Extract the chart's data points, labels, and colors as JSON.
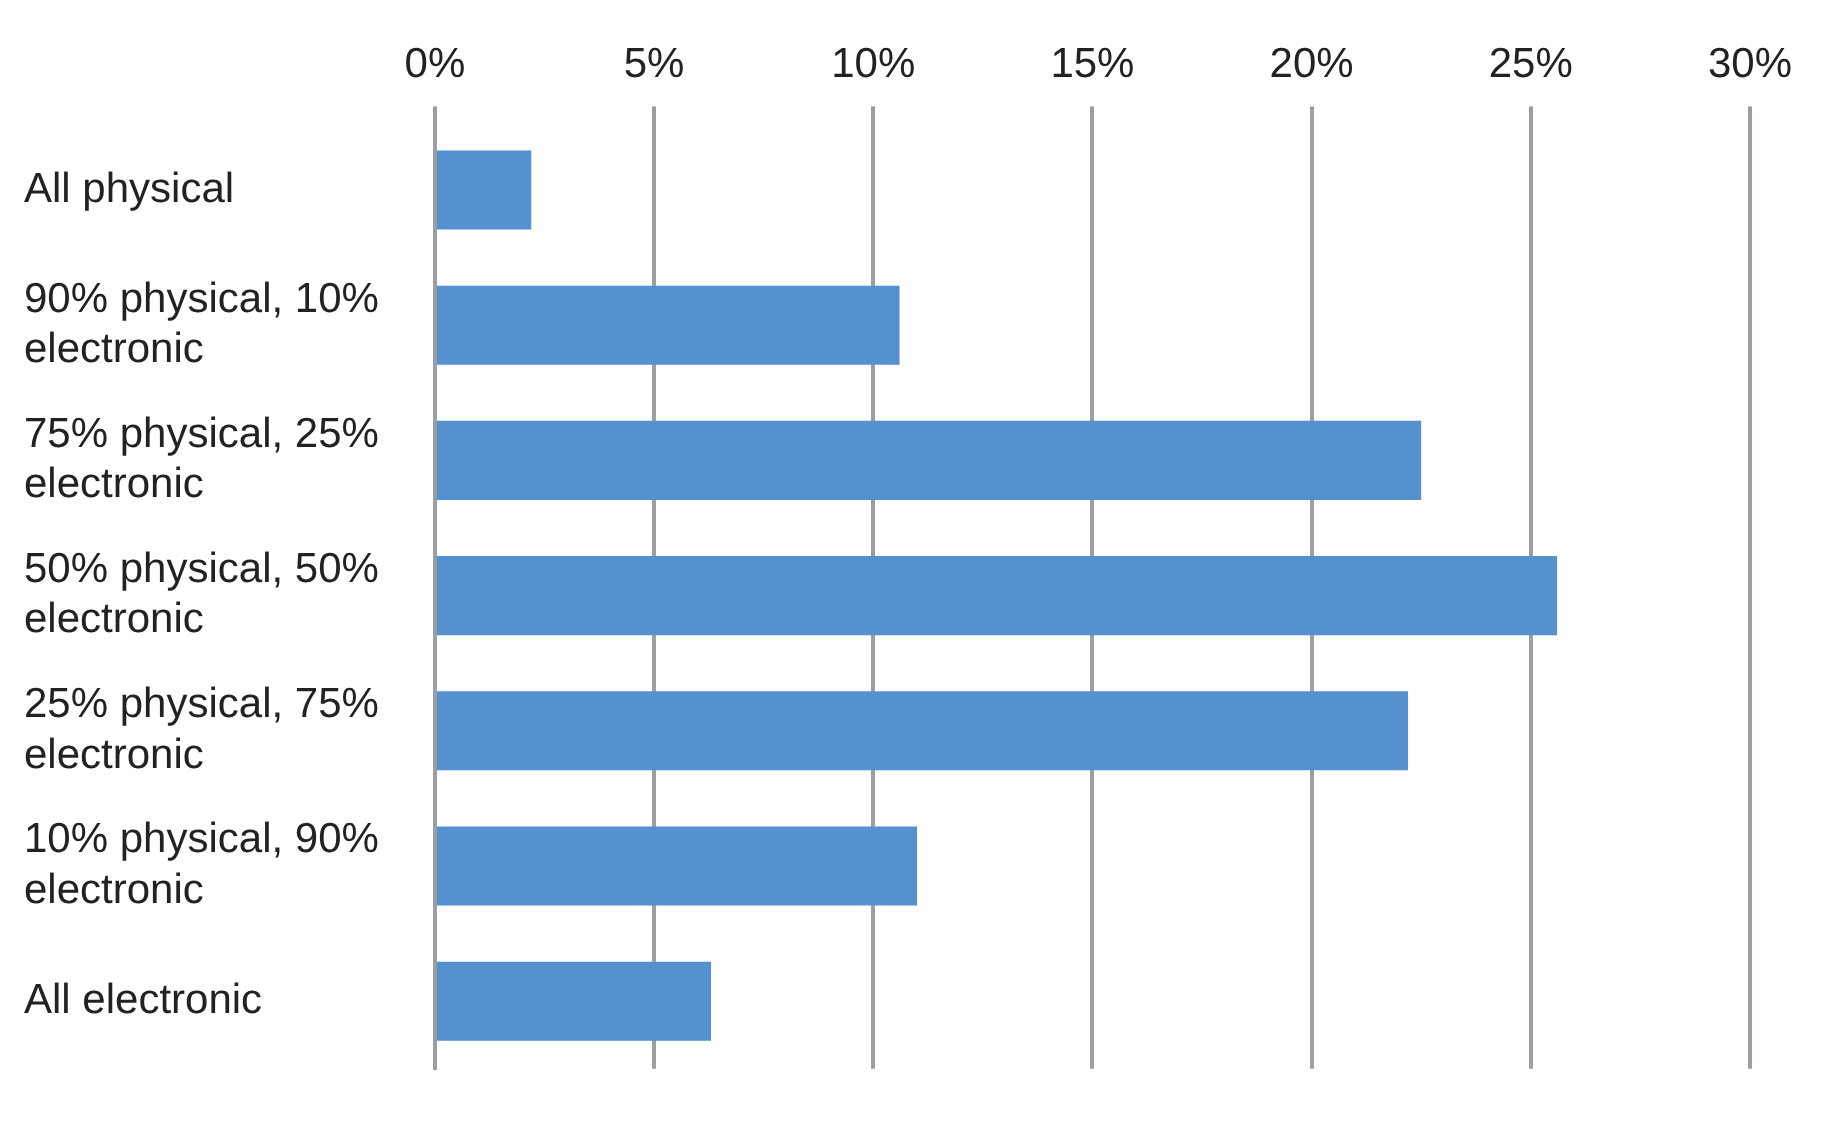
{
  "chart_data": {
    "type": "bar",
    "orientation": "horizontal",
    "categories": [
      "All physical",
      "90% physical, 10% electronic",
      "75% physical, 25% electronic",
      "50% physical, 50% electronic",
      "25% physical, 75% electronic",
      "10% physical, 90% electronic",
      "All electronic"
    ],
    "values": [
      2.2,
      10.6,
      22.5,
      25.6,
      22.2,
      11.0,
      6.3
    ],
    "color": "#5591cf",
    "xlim": [
      0,
      30
    ],
    "xticks": [
      {
        "value": 0,
        "label": "0%"
      },
      {
        "value": 5,
        "label": "5%"
      },
      {
        "value": 10,
        "label": "10%"
      },
      {
        "value": 15,
        "label": "15%"
      },
      {
        "value": 20,
        "label": "20%"
      },
      {
        "value": 25,
        "label": "25%"
      },
      {
        "value": 30,
        "label": "30%"
      }
    ],
    "grid": "x"
  }
}
